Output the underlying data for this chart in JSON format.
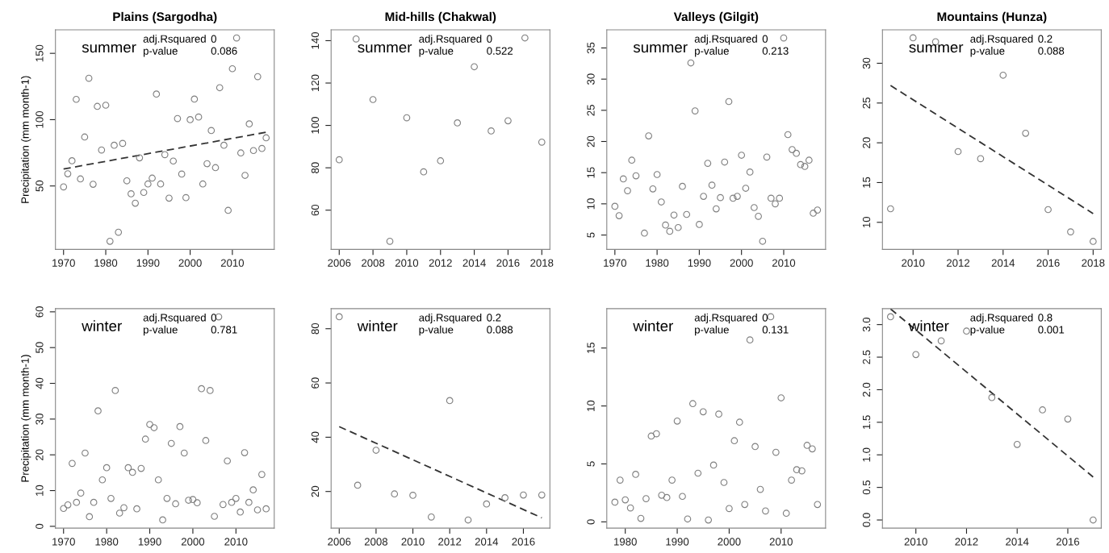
{
  "chart_data": [
    {
      "type": "scatter",
      "title": "Plains (Sargodha)",
      "ylabel": "Precipitation (mm month-1)",
      "annotations": [
        "summer",
        "adj.Rsquared",
        "0",
        "p-value",
        "0.086"
      ],
      "x": [
        1970,
        1971,
        1972,
        1973,
        1974,
        1975,
        1976,
        1977,
        1978,
        1979,
        1980,
        1981,
        1982,
        1983,
        1984,
        1985,
        1986,
        1987,
        1988,
        1989,
        1990,
        1991,
        1992,
        1993,
        1994,
        1995,
        1996,
        1997,
        1998,
        1999,
        2000,
        2001,
        2002,
        2003,
        2004,
        2005,
        2006,
        2007,
        2008,
        2009,
        2010,
        2011,
        2012,
        2013,
        2014,
        2015,
        2016,
        2017,
        2018
      ],
      "series": [
        {
          "color": "#808080",
          "marker": "circle",
          "values": [
            49.3,
            59.2,
            69,
            115.3,
            55.3,
            86.9,
            131.2,
            51.3,
            110,
            77.1,
            110.9,
            8.3,
            80.7,
            15.1,
            82.1,
            53.9,
            44.1,
            37,
            71.2,
            45.1,
            51.5,
            55.9,
            119.3,
            51.5,
            73.6,
            40.8,
            68.8,
            100.8,
            59,
            41.2,
            100,
            115.5,
            102,
            51.5,
            66.8,
            91.8,
            63.8,
            124.1,
            80.7,
            31.6,
            138.4,
            161.6,
            74.9,
            58,
            96.8,
            76.7,
            132.4,
            78.3,
            86.3
          ]
        },
        {
          "type": "line",
          "x": [
            1970,
            2018
          ],
          "values": [
            62.8,
            90.5
          ],
          "color": "#333333",
          "line_style": "dashed",
          "marker": "none"
        }
      ],
      "xlim": [
        1968.08,
        2019.92
      ],
      "ylim": [
        2.2,
        167.7
      ],
      "xticks": [
        1970,
        1980,
        1990,
        2000,
        2010
      ],
      "yticks": [
        50,
        100,
        150
      ],
      "grid": false
    },
    {
      "type": "scatter",
      "title": "Mid-hills (Chakwal)",
      "annotations": [
        "summer",
        "adj.Rsquared",
        "0",
        "p-value",
        "0.522"
      ],
      "x": [
        2006,
        2007,
        2008,
        2009,
        2010,
        2011,
        2012,
        2013,
        2014,
        2015,
        2016,
        2017,
        2018
      ],
      "series": [
        {
          "color": "#808080",
          "marker": "circle",
          "values": [
            83.8,
            140.8,
            112.2,
            45.3,
            103.6,
            78.1,
            83.3,
            101.2,
            127.7,
            97.4,
            102.2,
            141.3,
            92.1
          ]
        }
      ],
      "xlim": [
        2005.52,
        2018.48
      ],
      "ylim": [
        41.5,
        145.1
      ],
      "xticks": [
        2006,
        2008,
        2010,
        2012,
        2014,
        2016,
        2018
      ],
      "yticks": [
        60,
        80,
        100,
        120,
        140
      ],
      "grid": false
    },
    {
      "type": "scatter",
      "title": "Valleys (Gilgit)",
      "annotations": [
        "summer",
        "adj.Rsquared",
        "0",
        "p-value",
        "0.213"
      ],
      "x": [
        1970,
        1971,
        1972,
        1973,
        1974,
        1975,
        1977,
        1978,
        1979,
        1980,
        1981,
        1982,
        1983,
        1984,
        1985,
        1986,
        1987,
        1988,
        1989,
        1990,
        1991,
        1992,
        1993,
        1994,
        1995,
        1996,
        1997,
        1998,
        1999,
        2000,
        2001,
        2002,
        2003,
        2004,
        2005,
        2006,
        2007,
        2008,
        2009,
        2010,
        2011,
        2012,
        2013,
        2014,
        2015,
        2016,
        2017,
        2018
      ],
      "series": [
        {
          "color": "#808080",
          "marker": "circle",
          "values": [
            9.6,
            8.1,
            14.0,
            12.1,
            17.0,
            14.5,
            5.3,
            20.9,
            12.4,
            14.7,
            10.3,
            6.6,
            5.6,
            8.2,
            6.2,
            12.8,
            8.3,
            32.6,
            24.9,
            6.7,
            11.2,
            16.5,
            13.0,
            9.2,
            11.0,
            16.7,
            26.4,
            10.9,
            11.2,
            17.8,
            12.5,
            15.1,
            9.4,
            8.0,
            4.0,
            17.5,
            10.9,
            10.0,
            10.9,
            36.6,
            21.1,
            18.7,
            18.1,
            16.3,
            16.0,
            17.0,
            8.5,
            9.0
          ]
        }
      ],
      "xlim": [
        1968.08,
        2019.92
      ],
      "ylim": [
        2.7,
        37.9
      ],
      "xticks": [
        1970,
        1980,
        1990,
        2000,
        2010
      ],
      "yticks": [
        5,
        10,
        15,
        20,
        25,
        30,
        35
      ],
      "grid": false
    },
    {
      "type": "scatter",
      "title": "Mountains (Hunza)",
      "annotations": [
        "summer",
        "adj.Rsquared",
        "0.2",
        "p-value",
        "0.088"
      ],
      "x": [
        2009,
        2010,
        2011,
        2012,
        2013,
        2014,
        2015,
        2016,
        2017,
        2018
      ],
      "series": [
        {
          "color": "#808080",
          "marker": "circle",
          "values": [
            11.7,
            33.2,
            32.7,
            18.9,
            18.0,
            28.5,
            21.2,
            11.6,
            8.8,
            7.6
          ]
        },
        {
          "type": "line",
          "x": [
            2009,
            2018
          ],
          "values": [
            27.2,
            11.1
          ],
          "color": "#333333",
          "line_style": "dashed",
          "marker": "none"
        }
      ],
      "xlim": [
        2008.64,
        2018.36
      ],
      "ylim": [
        6.6,
        34.2
      ],
      "xticks": [
        2010,
        2012,
        2014,
        2016,
        2018
      ],
      "yticks": [
        10,
        15,
        20,
        25,
        30
      ],
      "grid": false
    },
    {
      "type": "scatter",
      "ylabel": "Precipitation (mm month-1)",
      "annotations": [
        "winter",
        "adj.Rsquared",
        "0",
        "p-value",
        "0.781"
      ],
      "x": [
        1970,
        1971,
        1972,
        1973,
        1974,
        1975,
        1976,
        1977,
        1978,
        1979,
        1980,
        1981,
        1982,
        1983,
        1984,
        1985,
        1986,
        1987,
        1988,
        1989,
        1990,
        1991,
        1992,
        1993,
        1994,
        1995,
        1996,
        1997,
        1998,
        1999,
        2000,
        2001,
        2002,
        2003,
        2004,
        2005,
        2006,
        2007,
        2008,
        2009,
        2010,
        2011,
        2012,
        2013,
        2014,
        2015,
        2016,
        2017
      ],
      "series": [
        {
          "color": "#808080",
          "marker": "circle",
          "values": [
            5.0,
            6.0,
            17.6,
            6.7,
            9.3,
            20.5,
            2.7,
            6.7,
            32.3,
            13.0,
            16.4,
            7.8,
            38.0,
            3.7,
            5.2,
            16.4,
            15.1,
            4.9,
            16.2,
            24.4,
            28.5,
            27.6,
            13.0,
            1.8,
            7.8,
            23.2,
            6.3,
            27.9,
            20.5,
            7.3,
            7.5,
            6.6,
            38.5,
            24.0,
            38.0,
            2.8,
            58.6,
            6.1,
            18.3,
            6.7,
            7.8,
            4.0,
            20.6,
            6.7,
            10.2,
            4.6,
            14.5,
            4.9
          ]
        }
      ],
      "xlim": [
        1968.12,
        2018.88
      ],
      "ylim": [
        -0.5,
        60.9
      ],
      "xticks": [
        1970,
        1980,
        1990,
        2000,
        2010
      ],
      "yticks": [
        0,
        10,
        20,
        30,
        40,
        50,
        60
      ],
      "grid": false
    },
    {
      "type": "scatter",
      "annotations": [
        "winter",
        "adj.Rsquared",
        "0.2",
        "p-value",
        "0.088"
      ],
      "x": [
        2006,
        2007,
        2008,
        2009,
        2010,
        2011,
        2012,
        2013,
        2014,
        2015,
        2016,
        2017
      ],
      "series": [
        {
          "color": "#808080",
          "marker": "circle",
          "values": [
            84.4,
            22.3,
            35.2,
            19.1,
            18.6,
            10.6,
            53.5,
            9.5,
            15.4,
            17.7,
            18.7,
            18.7
          ]
        },
        {
          "type": "line",
          "x": [
            2006,
            2017
          ],
          "values": [
            43.9,
            10.3
          ],
          "color": "#333333",
          "line_style": "dashed",
          "marker": "none"
        }
      ],
      "xlim": [
        2005.56,
        2017.44
      ],
      "ylim": [
        6.5,
        87.4
      ],
      "xticks": [
        2006,
        2008,
        2010,
        2012,
        2014,
        2016
      ],
      "yticks": [
        20,
        40,
        60,
        80
      ],
      "grid": false
    },
    {
      "type": "scatter",
      "annotations": [
        "winter",
        "adj.Rsquared",
        "0",
        "p-value",
        "0.131"
      ],
      "x": [
        1978,
        1979,
        1980,
        1981,
        1982,
        1983,
        1984,
        1985,
        1986,
        1987,
        1988,
        1989,
        1990,
        1991,
        1992,
        1993,
        1994,
        1995,
        1996,
        1997,
        1998,
        1999,
        2000,
        2001,
        2002,
        2003,
        2004,
        2005,
        2006,
        2007,
        2008,
        2009,
        2010,
        2011,
        2012,
        2013,
        2014,
        2015,
        2016,
        2017
      ],
      "series": [
        {
          "color": "#808080",
          "marker": "circle",
          "values": [
            1.7,
            3.6,
            1.9,
            1.2,
            4.1,
            0.3,
            2.0,
            7.4,
            7.6,
            2.3,
            2.1,
            3.6,
            8.7,
            2.2,
            0.25,
            10.2,
            4.2,
            9.5,
            0.16,
            4.9,
            9.3,
            3.4,
            1.15,
            7.0,
            8.6,
            1.5,
            15.7,
            6.5,
            2.8,
            0.94,
            17.7,
            6.0,
            10.7,
            0.74,
            3.6,
            4.5,
            4.4,
            6.6,
            6.3,
            1.5
          ]
        }
      ],
      "xlim": [
        1976.44,
        2018.56
      ],
      "ylim": [
        -0.54,
        18.4
      ],
      "xticks": [
        1980,
        1990,
        2000,
        2010
      ],
      "yticks": [
        0,
        5,
        10,
        15
      ],
      "grid": false
    },
    {
      "type": "scatter",
      "annotations": [
        "winter",
        "adj.Rsquared",
        "0.8",
        "p-value",
        "0.001"
      ],
      "x": [
        2009,
        2010,
        2011,
        2012,
        2013,
        2014,
        2015,
        2016,
        2017
      ],
      "series": [
        {
          "color": "#808080",
          "marker": "circle",
          "values": [
            3.12,
            2.54,
            2.75,
            2.9,
            1.88,
            1.16,
            1.69,
            1.55,
            0.0
          ]
        },
        {
          "type": "line",
          "x": [
            2009,
            2017
          ],
          "values": [
            3.24,
            0.66
          ],
          "color": "#333333",
          "line_style": "dashed",
          "marker": "none"
        }
      ],
      "xlim": [
        2008.68,
        2017.32
      ],
      "ylim": [
        -0.125,
        3.245
      ],
      "xticks": [
        2010,
        2012,
        2014,
        2016
      ],
      "yticks": [
        {
          "value": 0,
          "label": "0.0"
        },
        0.5,
        {
          "value": 1,
          "label": "1.0"
        },
        1.5,
        {
          "value": 2,
          "label": "2.0"
        },
        2.5,
        {
          "value": 3,
          "label": "3.0"
        }
      ],
      "grid": false
    }
  ]
}
